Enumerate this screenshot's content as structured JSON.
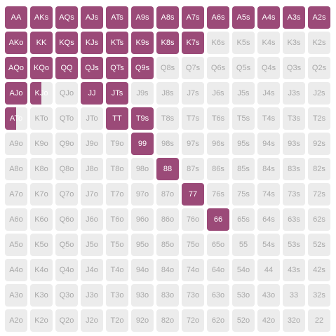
{
  "range_grid": {
    "colors": {
      "selected": "#9b4a78",
      "unselected": "#ececec",
      "label_on": "#ffffff",
      "label_off": "#a8a8a8"
    },
    "rows": [
      [
        "AA",
        "AKs",
        "AQs",
        "AJs",
        "ATs",
        "A9s",
        "A8s",
        "A7s",
        "A6s",
        "A5s",
        "A4s",
        "A3s",
        "A2s"
      ],
      [
        "AKo",
        "KK",
        "KQs",
        "KJs",
        "KTs",
        "K9s",
        "K8s",
        "K7s",
        "K6s",
        "K5s",
        "K4s",
        "K3s",
        "K2s"
      ],
      [
        "AQo",
        "KQo",
        "QQ",
        "QJs",
        "QTs",
        "Q9s",
        "Q8s",
        "Q7s",
        "Q6s",
        "Q5s",
        "Q4s",
        "Q3s",
        "Q2s"
      ],
      [
        "AJo",
        "KJo",
        "QJo",
        "JJ",
        "JTs",
        "J9s",
        "J8s",
        "J7s",
        "J6s",
        "J5s",
        "J4s",
        "J3s",
        "J2s"
      ],
      [
        "ATo",
        "KTo",
        "QTo",
        "JTo",
        "TT",
        "T9s",
        "T8s",
        "T7s",
        "T6s",
        "T5s",
        "T4s",
        "T3s",
        "T2s"
      ],
      [
        "A9o",
        "K9o",
        "Q9o",
        "J9o",
        "T9o",
        "99",
        "98s",
        "97s",
        "96s",
        "95s",
        "94s",
        "93s",
        "92s"
      ],
      [
        "A8o",
        "K8o",
        "Q8o",
        "J8o",
        "T8o",
        "98o",
        "88",
        "87s",
        "86s",
        "85s",
        "84s",
        "83s",
        "82s"
      ],
      [
        "A7o",
        "K7o",
        "Q7o",
        "J7o",
        "T7o",
        "97o",
        "87o",
        "77",
        "76s",
        "75s",
        "74s",
        "73s",
        "72s"
      ],
      [
        "A6o",
        "K6o",
        "Q6o",
        "J6o",
        "T6o",
        "96o",
        "86o",
        "76o",
        "66",
        "65s",
        "64s",
        "63s",
        "62s"
      ],
      [
        "A5o",
        "K5o",
        "Q5o",
        "J5o",
        "T5o",
        "95o",
        "85o",
        "75o",
        "65o",
        "55",
        "54s",
        "53s",
        "52s"
      ],
      [
        "A4o",
        "K4o",
        "Q4o",
        "J4o",
        "T4o",
        "94o",
        "84o",
        "74o",
        "64o",
        "54o",
        "44",
        "43s",
        "42s"
      ],
      [
        "A3o",
        "K3o",
        "Q3o",
        "J3o",
        "T3o",
        "93o",
        "83o",
        "73o",
        "63o",
        "53o",
        "43o",
        "33",
        "32s"
      ],
      [
        "A2o",
        "K2o",
        "Q2o",
        "J2o",
        "T2o",
        "92o",
        "82o",
        "72o",
        "62o",
        "52o",
        "42o",
        "32o",
        "22"
      ]
    ],
    "frequencies": [
      [
        1,
        1,
        1,
        1,
        1,
        1,
        1,
        1,
        1,
        1,
        1,
        1,
        1
      ],
      [
        1,
        1,
        1,
        1,
        1,
        1,
        1,
        1,
        0,
        0,
        0,
        0,
        0
      ],
      [
        1,
        1,
        1,
        1,
        1,
        1,
        0,
        0,
        0,
        0,
        0,
        0,
        0
      ],
      [
        1,
        0.5,
        0,
        1,
        1,
        0,
        0,
        0,
        0,
        0,
        0,
        0,
        0
      ],
      [
        0.5,
        0,
        0,
        0,
        1,
        1,
        0,
        0,
        0,
        0,
        0,
        0,
        0
      ],
      [
        0,
        0,
        0,
        0,
        0,
        1,
        0,
        0,
        0,
        0,
        0,
        0,
        0
      ],
      [
        0,
        0,
        0,
        0,
        0,
        0,
        1,
        0,
        0,
        0,
        0,
        0,
        0
      ],
      [
        0,
        0,
        0,
        0,
        0,
        0,
        0,
        1,
        0,
        0,
        0,
        0,
        0
      ],
      [
        0,
        0,
        0,
        0,
        0,
        0,
        0,
        0,
        1,
        0,
        0,
        0,
        0
      ],
      [
        0,
        0,
        0,
        0,
        0,
        0,
        0,
        0,
        0,
        0,
        0,
        0,
        0
      ],
      [
        0,
        0,
        0,
        0,
        0,
        0,
        0,
        0,
        0,
        0,
        0,
        0,
        0
      ],
      [
        0,
        0,
        0,
        0,
        0,
        0,
        0,
        0,
        0,
        0,
        0,
        0,
        0
      ],
      [
        0,
        0,
        0,
        0,
        0,
        0,
        0,
        0,
        0,
        0,
        0,
        0,
        0
      ]
    ]
  }
}
